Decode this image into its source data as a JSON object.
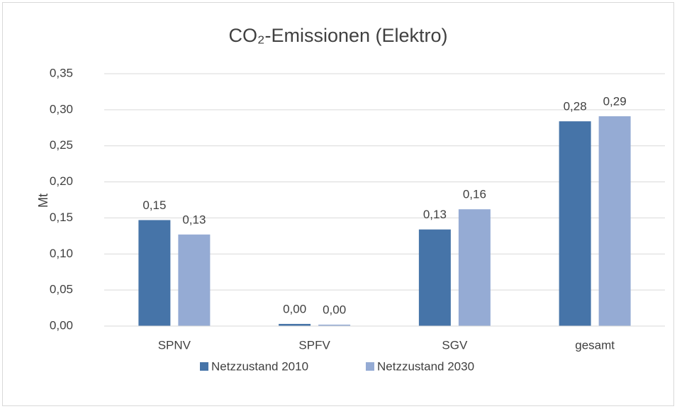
{
  "chart_data": {
    "type": "bar",
    "title": "CO₂-Emissionen (Elektro)",
    "ylabel": "Mt",
    "categories": [
      "SPNV",
      "SPFV",
      "SGV",
      "gesamt"
    ],
    "series": [
      {
        "name": "Netzzustand 2010",
        "color": "#4674a8",
        "values": [
          0.147,
          0.003,
          0.134,
          0.284
        ],
        "value_labels": [
          "0,15",
          "0,00",
          "0,13",
          "0,28"
        ]
      },
      {
        "name": "Netzzustand 2030",
        "color": "#95abd4",
        "values": [
          0.127,
          0.002,
          0.162,
          0.291
        ],
        "value_labels": [
          "0,13",
          "0,00",
          "0,16",
          "0,29"
        ]
      }
    ],
    "ylim": [
      0,
      0.35
    ],
    "yticks": [
      {
        "value": 0,
        "label": "0,00"
      },
      {
        "value": 0.05,
        "label": "0,05"
      },
      {
        "value": 0.1,
        "label": "0,10"
      },
      {
        "value": 0.15,
        "label": "0,15"
      },
      {
        "value": 0.2,
        "label": "0,20"
      },
      {
        "value": 0.25,
        "label": "0,25"
      },
      {
        "value": 0.3,
        "label": "0,30"
      },
      {
        "value": 0.35,
        "label": "0,35"
      }
    ],
    "grid": true,
    "legend": "bottom"
  }
}
